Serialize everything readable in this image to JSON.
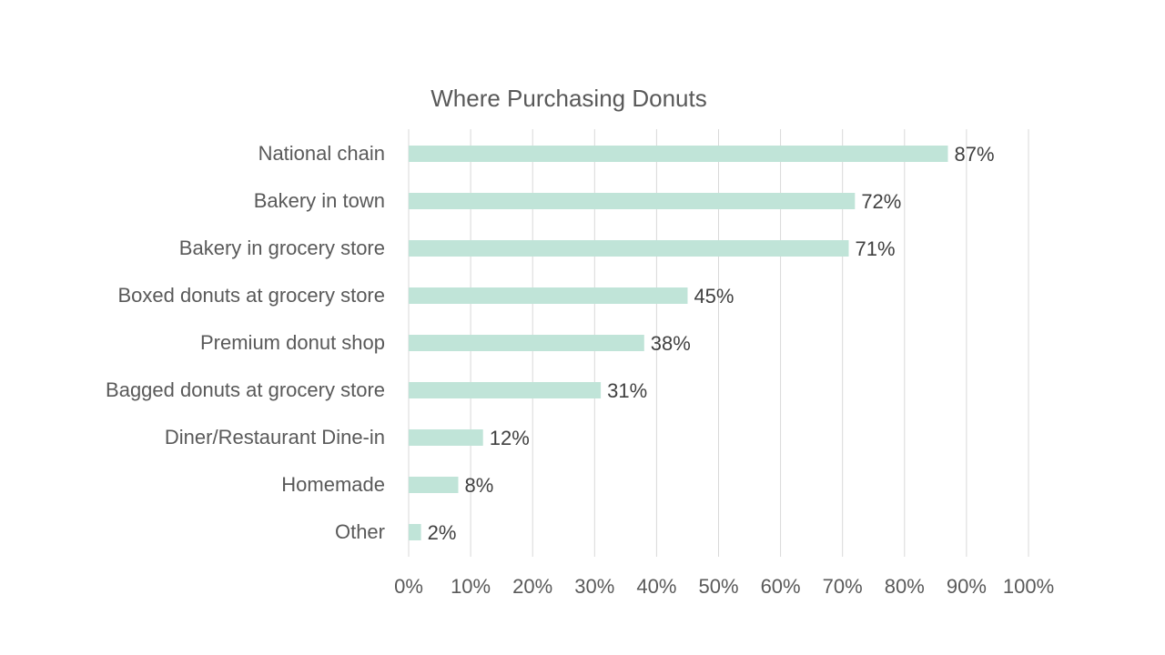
{
  "chart_data": {
    "type": "bar",
    "orientation": "horizontal",
    "title": "Where Purchasing Donuts",
    "categories": [
      "National chain",
      "Bakery in town",
      "Bakery in grocery store",
      "Boxed donuts at grocery store",
      "Premium donut shop",
      "Bagged donuts at grocery store",
      "Diner/Restaurant Dine-in",
      "Homemade",
      "Other"
    ],
    "values": [
      87,
      72,
      71,
      45,
      38,
      31,
      12,
      8,
      2
    ],
    "value_labels": [
      "87%",
      "72%",
      "71%",
      "45%",
      "38%",
      "31%",
      "12%",
      "8%",
      "2%"
    ],
    "x_ticks": [
      0,
      10,
      20,
      30,
      40,
      50,
      60,
      70,
      80,
      90,
      100
    ],
    "x_tick_labels": [
      "0%",
      "10%",
      "20%",
      "30%",
      "40%",
      "50%",
      "60%",
      "70%",
      "80%",
      "90%",
      "100%"
    ],
    "xlim": [
      0,
      100
    ],
    "xlabel": "",
    "ylabel": "",
    "grid": true,
    "legend": "none",
    "colors": {
      "bar": "#c0e4d8",
      "grid": "#d9d9d9",
      "text": "#595959",
      "label": "#404040"
    }
  }
}
